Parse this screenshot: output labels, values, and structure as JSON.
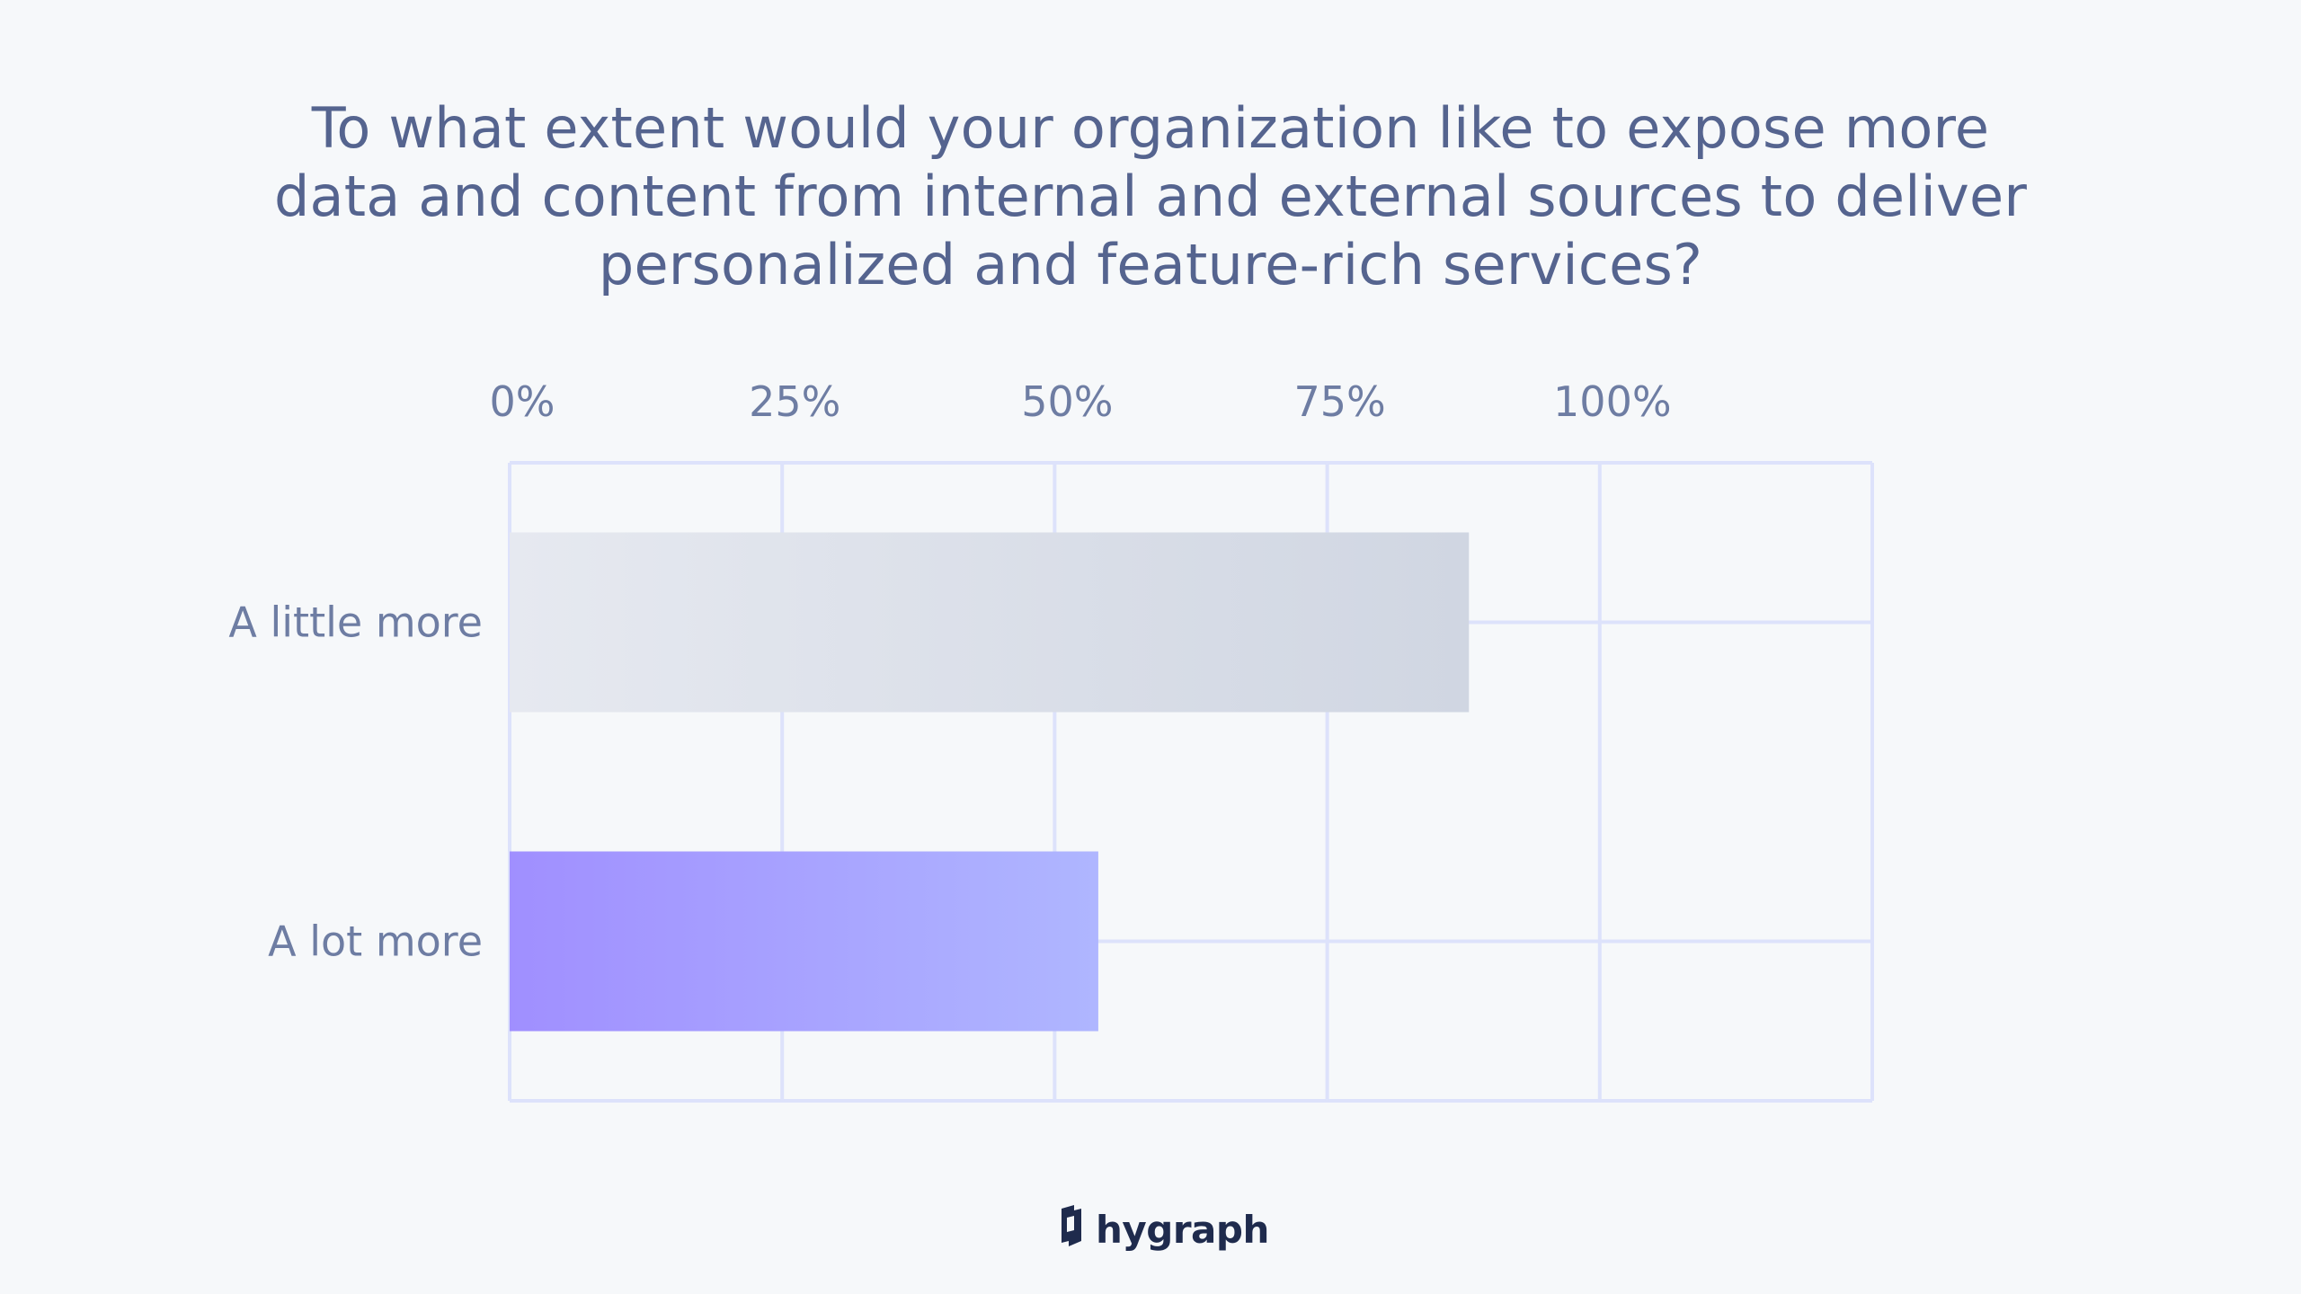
{
  "chart_data": {
    "type": "bar",
    "orientation": "horizontal",
    "title": "To what extent would your organization like to expose more data and content from internal and external sources to deliver personalized and feature-rich services?",
    "categories": [
      "A little more",
      "A lot more"
    ],
    "values": [
      88,
      54
    ],
    "xlim": [
      0,
      125
    ],
    "ticks": [
      0,
      25,
      50,
      75,
      100
    ],
    "tick_labels": [
      "0%",
      "25%",
      "50%",
      "75%",
      "100%"
    ],
    "x_axis_position": "top",
    "grid": true,
    "legend": "none",
    "colors": {
      "bar_little_start": "#e6e9f0",
      "bar_little_end": "#d0d6e2",
      "bar_lot_start": "#a08fff",
      "bar_lot_end": "#afb6ff",
      "grid": "#dde2fb",
      "text": "#6e7da3",
      "title": "#55648f"
    }
  },
  "brand": {
    "name": "hygraph",
    "icon": "hygraph-logo-icon"
  }
}
